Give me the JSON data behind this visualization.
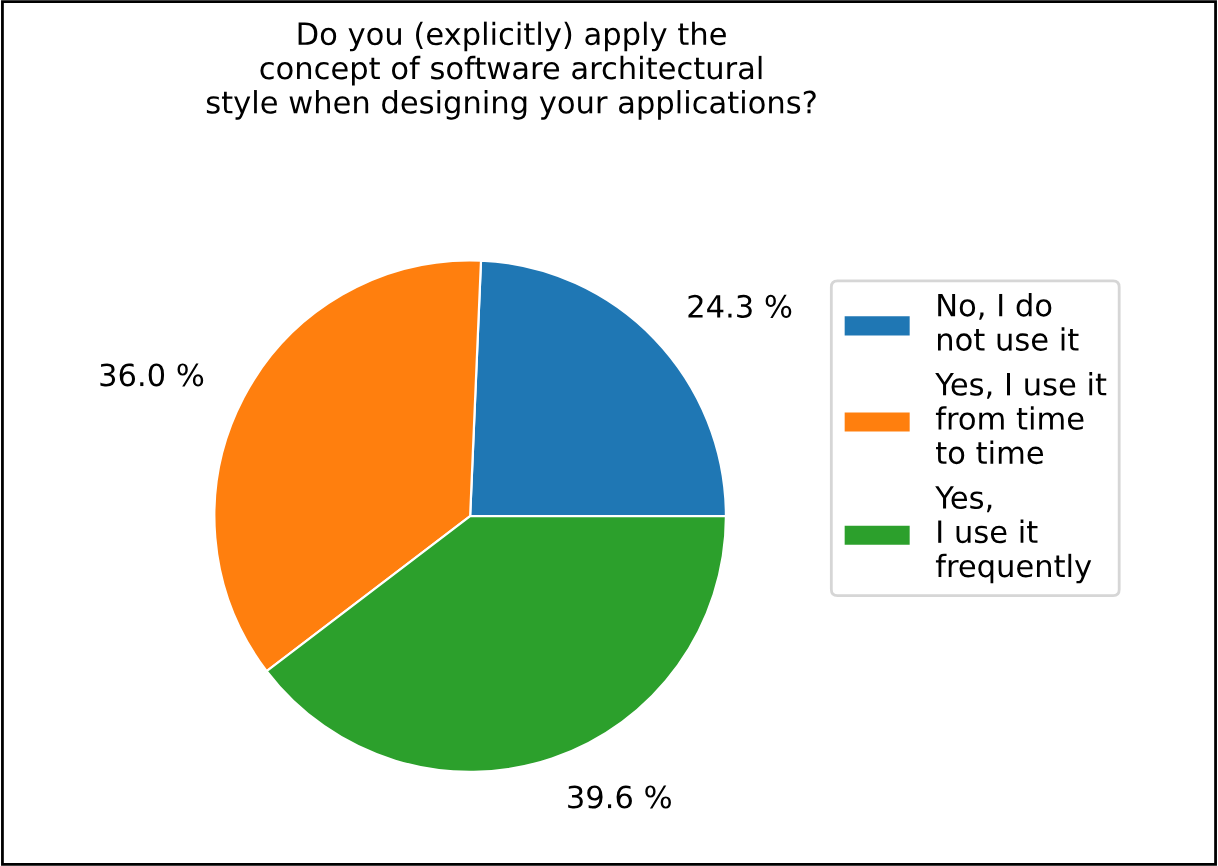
{
  "chart_data": {
    "type": "pie",
    "title": "Do you (explicitly) apply the\nconcept of software architectural\nstyle when designing your applications?",
    "categories": [
      "No, I do\nnot use it",
      "Yes, I use it\nfrom time\nto time",
      "Yes,\nI use it\nfrequently"
    ],
    "values": [
      24.3,
      36.0,
      39.6
    ],
    "colors": [
      "#1f77b4",
      "#ff7f0e",
      "#2ca02c"
    ],
    "value_labels": [
      "24.3 %",
      "36.0 %",
      "39.6 %"
    ],
    "legend": "right"
  }
}
